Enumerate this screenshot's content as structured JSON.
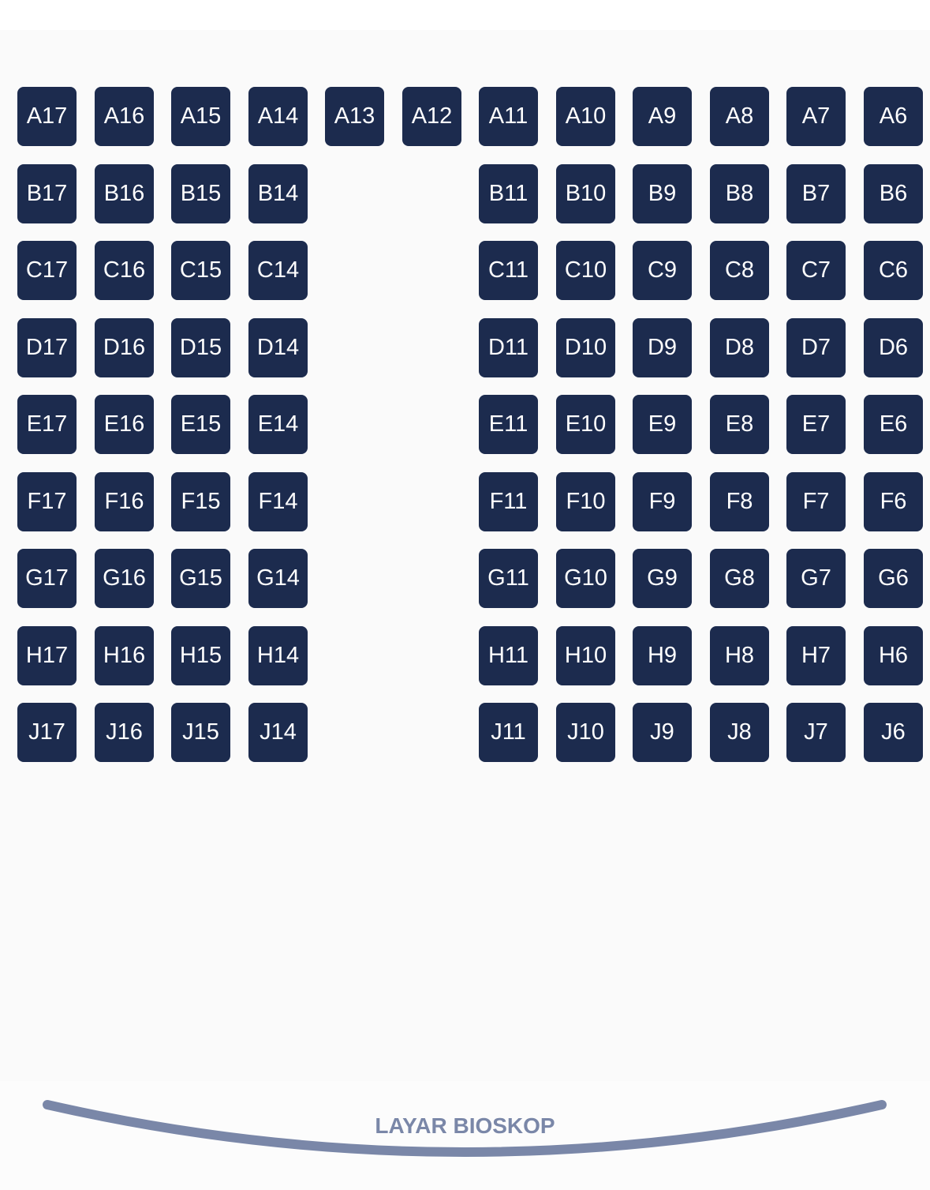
{
  "seat_map": {
    "rows": [
      {
        "row": "A",
        "seats": [
          "A17",
          "A16",
          "A15",
          "A14",
          "A13",
          "A12",
          "A11",
          "A10",
          "A9",
          "A8",
          "A7",
          "A6"
        ]
      },
      {
        "row": "B",
        "seats": [
          "B17",
          "B16",
          "B15",
          "B14",
          "",
          "",
          "B11",
          "B10",
          "B9",
          "B8",
          "B7",
          "B6"
        ]
      },
      {
        "row": "C",
        "seats": [
          "C17",
          "C16",
          "C15",
          "C14",
          "",
          "",
          "C11",
          "C10",
          "C9",
          "C8",
          "C7",
          "C6"
        ]
      },
      {
        "row": "D",
        "seats": [
          "D17",
          "D16",
          "D15",
          "D14",
          "",
          "",
          "D11",
          "D10",
          "D9",
          "D8",
          "D7",
          "D6"
        ]
      },
      {
        "row": "E",
        "seats": [
          "E17",
          "E16",
          "E15",
          "E14",
          "",
          "",
          "E11",
          "E10",
          "E9",
          "E8",
          "E7",
          "E6"
        ]
      },
      {
        "row": "F",
        "seats": [
          "F17",
          "F16",
          "F15",
          "F14",
          "",
          "",
          "F11",
          "F10",
          "F9",
          "F8",
          "F7",
          "F6"
        ]
      },
      {
        "row": "G",
        "seats": [
          "G17",
          "G16",
          "G15",
          "G14",
          "",
          "",
          "G11",
          "G10",
          "G9",
          "G8",
          "G7",
          "G6"
        ]
      },
      {
        "row": "H",
        "seats": [
          "H17",
          "H16",
          "H15",
          "H14",
          "",
          "",
          "H11",
          "H10",
          "H9",
          "H8",
          "H7",
          "H6"
        ]
      },
      {
        "row": "J",
        "seats": [
          "J17",
          "J16",
          "J15",
          "J14",
          "",
          "",
          "J11",
          "J10",
          "J9",
          "J8",
          "J7",
          "J6"
        ]
      }
    ]
  },
  "screen": {
    "label": "LAYAR BIOSKOP"
  },
  "colors": {
    "seat_background": "#1c2b4e",
    "seat_text": "#ffffff",
    "screen_arc": "#7a87a8",
    "screen_label": "#7a87a8",
    "area_background": "#fafafa"
  }
}
